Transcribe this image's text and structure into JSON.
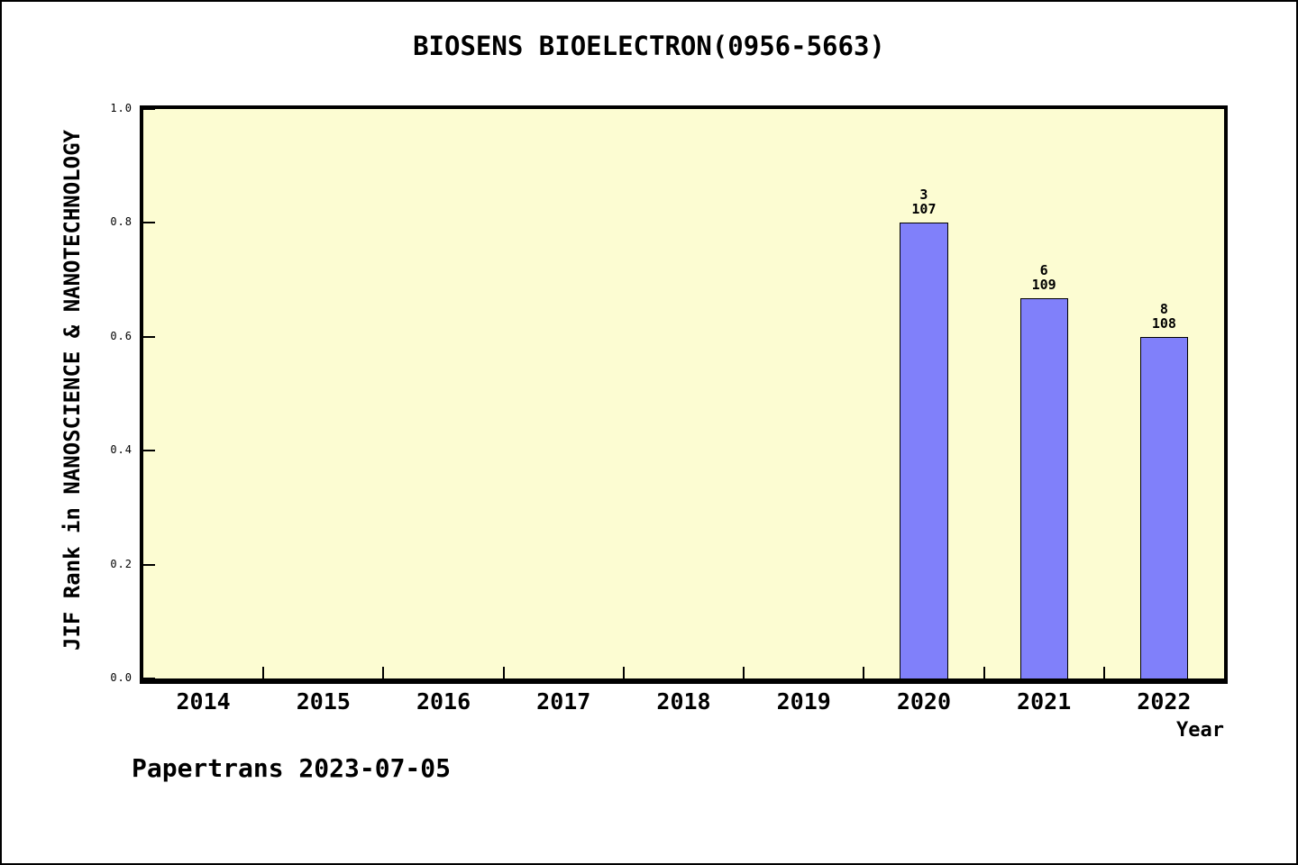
{
  "chart_data": {
    "type": "bar",
    "title": "BIOSENS BIOELECTRON(0956-5663)",
    "xlabel": "Year",
    "ylabel": "JIF Rank in NANOSCIENCE & NANOTECHNOLOGY",
    "footer": "Papertrans 2023-07-05",
    "xlim": [
      2013.5,
      2022.5
    ],
    "ylim": [
      0.0,
      1.0
    ],
    "grid": false,
    "legend": "none",
    "plot_bg_color": "#fcfcd2",
    "page_bg_color": "#ffffff",
    "bar_color": "#8080fa",
    "bar_border_color": "#000000",
    "bar_width_years": 0.4,
    "yticks": [
      {
        "v": 1.0,
        "label": "1.0"
      },
      {
        "v": 0.8,
        "label": "0.8"
      },
      {
        "v": 0.6,
        "label": "0.6"
      },
      {
        "v": 0.4,
        "label": "0.4"
      },
      {
        "v": 0.2,
        "label": "0.2"
      },
      {
        "v": 0.0,
        "label": "0.0"
      }
    ],
    "xticks": [
      {
        "v": 2014,
        "label": "2014"
      },
      {
        "v": 2015,
        "label": "2015"
      },
      {
        "v": 2016,
        "label": "2016"
      },
      {
        "v": 2017,
        "label": "2017"
      },
      {
        "v": 2018,
        "label": "2018"
      },
      {
        "v": 2019,
        "label": "2019"
      },
      {
        "v": 2020,
        "label": "2020"
      },
      {
        "v": 2021,
        "label": "2021"
      },
      {
        "v": 2022,
        "label": "2022"
      }
    ],
    "xtick_marks": [
      2014.5,
      2015.5,
      2016.5,
      2017.5,
      2018.5,
      2019.5,
      2020.5,
      2021.5
    ],
    "bars": [
      {
        "year": 2020,
        "value": 0.8,
        "rank_label": "3",
        "total_label": "107"
      },
      {
        "year": 2021,
        "value": 0.667,
        "rank_label": "6",
        "total_label": "109"
      },
      {
        "year": 2022,
        "value": 0.6,
        "rank_label": "8",
        "total_label": "108"
      }
    ]
  }
}
